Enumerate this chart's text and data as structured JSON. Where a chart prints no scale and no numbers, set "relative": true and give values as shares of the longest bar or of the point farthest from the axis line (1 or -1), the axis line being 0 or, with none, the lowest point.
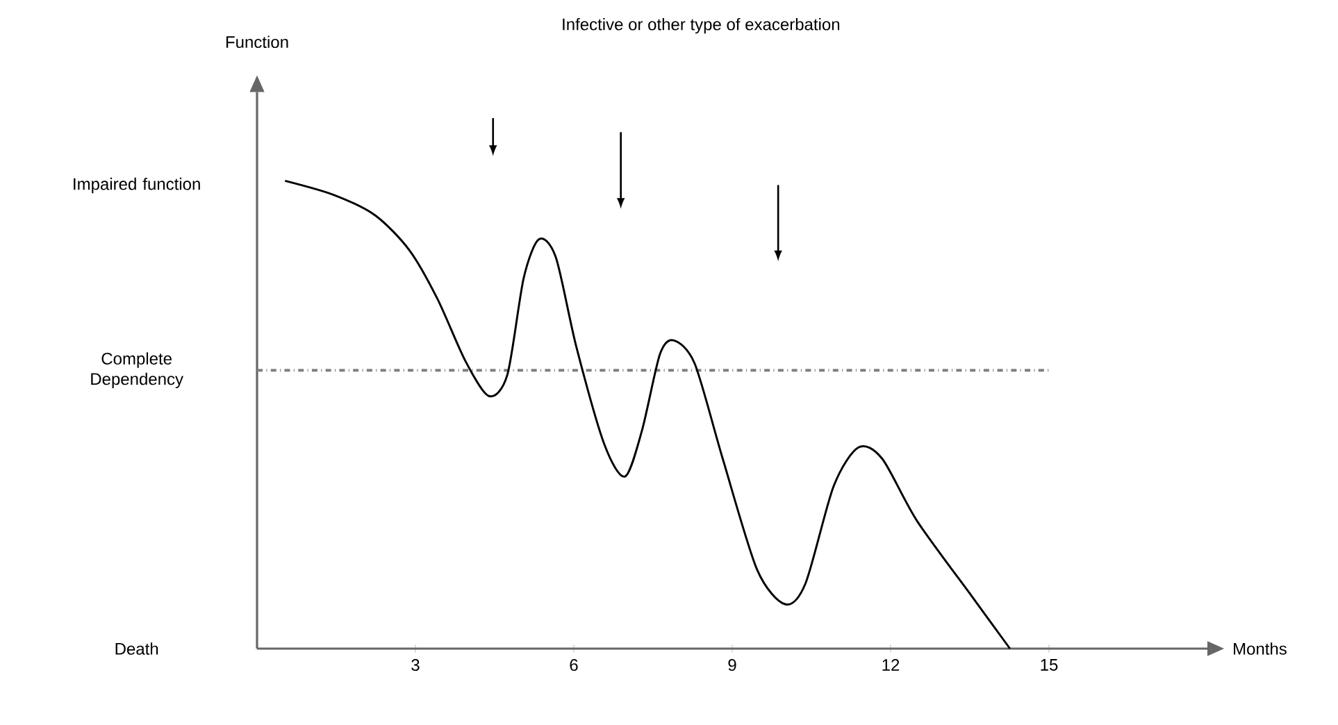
{
  "chart_data": {
    "type": "line",
    "title": "Infective or other type of exacerbation",
    "xlabel": "Months",
    "xlim": [
      0,
      18
    ],
    "xticks": [
      3,
      6,
      9,
      12,
      15
    ],
    "relative": true,
    "annotations": [
      "Function",
      "Impaired function",
      "Complete Dependency",
      "Death"
    ],
    "series": [
      {
        "color": "#000000",
        "x": [
          0.53,
          1.45,
          2.24,
          2.89,
          3.42,
          3.95,
          4.39,
          4.74,
          5.05,
          5.34,
          5.66,
          6.05,
          6.58,
          6.97,
          7.29,
          7.63,
          7.89,
          8.29,
          8.82,
          9.47,
          10.0,
          10.39,
          10.92,
          11.39,
          11.84,
          12.5,
          13.55,
          14.26
        ],
        "values": [
          1,
          0.97,
          0.926,
          0.851,
          0.747,
          0.614,
          0.54,
          0.585,
          0.792,
          0.875,
          0.836,
          0.644,
          0.436,
          0.368,
          0.466,
          0.629,
          0.659,
          0.609,
          0.406,
          0.169,
          0.095,
          0.14,
          0.347,
          0.43,
          0.406,
          0.273,
          0.11,
          0
        ]
      }
    ],
    "ref_lines": [
      {
        "axis": "y",
        "value": 0.595,
        "color": "#808080",
        "line_style": "dashdot"
      }
    ],
    "grid": false,
    "marker": "none",
    "line_style": "solid"
  }
}
